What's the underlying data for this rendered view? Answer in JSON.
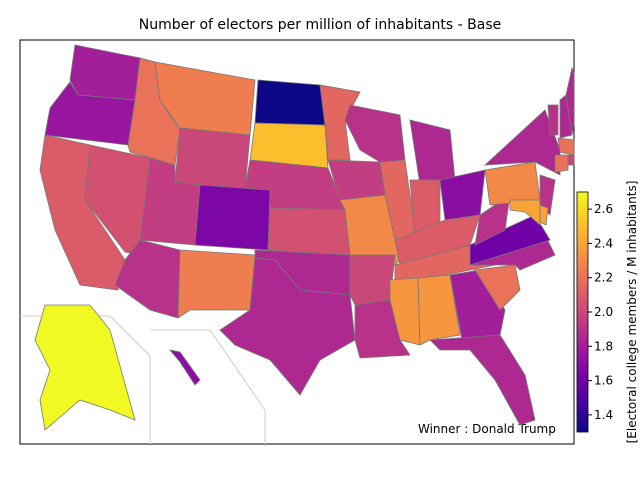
{
  "chart_data": {
    "type": "choropleth",
    "title": "Number of electors per million of inhabitants - Base",
    "annotation": "Winner : Donald Trump",
    "colormap": "plasma",
    "colorbar": {
      "label": "[Electoral college members / M inhabitants]",
      "lim": [
        1.3,
        2.7
      ],
      "ticks": [
        1.4,
        1.6,
        1.8,
        {
          "value": 2,
          "label": "2.0"
        },
        2.2,
        2.4,
        2.6
      ]
    },
    "values": [
      1.8,
      1.75,
      2.1,
      2.05,
      2.2,
      2.25,
      2.0,
      1.95,
      1.9,
      1.65,
      2.25,
      1.3,
      2.5,
      1.95,
      2.05,
      1.85,
      1.85,
      2.15,
      1.95,
      2.3,
      2.0,
      1.9,
      1.9,
      2.15,
      1.85,
      2.1,
      1.7,
      2.1,
      2.15,
      2.35,
      2.35,
      1.8,
      1.85,
      2.2,
      1.85,
      1.6,
      1.9,
      2.3,
      1.85,
      1.9,
      1.85,
      1.85,
      2.2,
      2.2,
      2.0,
      1.9,
      2.4,
      2.4,
      2.7,
      1.7
    ]
  }
}
